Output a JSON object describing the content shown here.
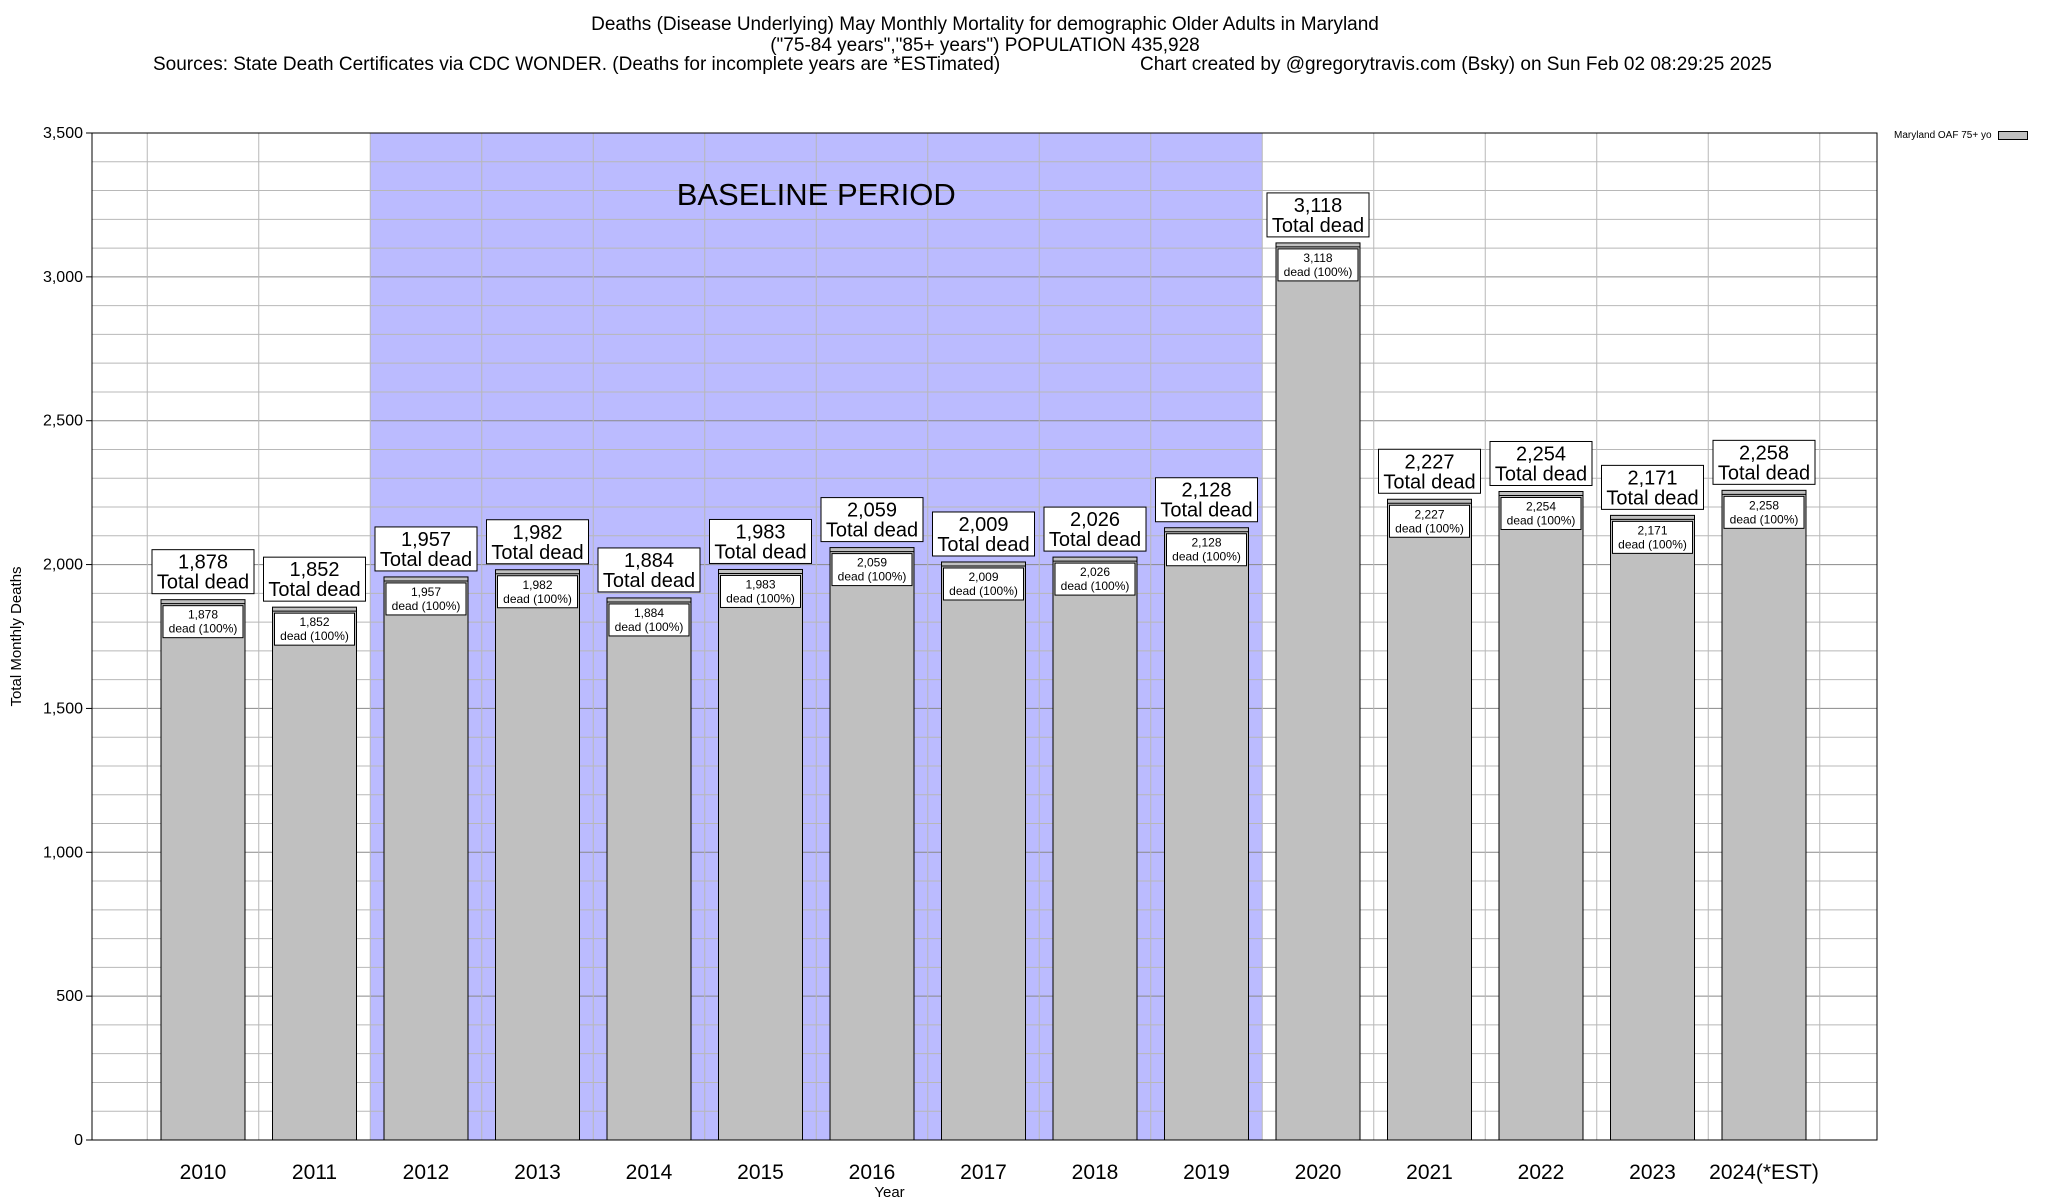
{
  "header": {
    "title_line1": "Deaths (Disease Underlying) May Monthly Mortality for demographic Older Adults in Maryland",
    "title_line2": "(\"75-84 years\",\"85+ years\") POPULATION 435,928",
    "sources": "Sources: State Death Certificates via CDC WONDER. (Deaths for incomplete years are *ESTimated)",
    "credit": "Chart created by @gregorytravis.com (Bsky) on Sun Feb 02 08:29:25 2025"
  },
  "chart_data": {
    "type": "bar",
    "categories": [
      "2010",
      "2011",
      "2012",
      "2013",
      "2014",
      "2015",
      "2016",
      "2017",
      "2018",
      "2019",
      "2020",
      "2021",
      "2022",
      "2023",
      "2024(*EST)"
    ],
    "series": [
      {
        "name": "Maryland OAF 75+ yo",
        "values": [
          1878,
          1852,
          1957,
          1982,
          1884,
          1983,
          2059,
          2009,
          2026,
          2128,
          3118,
          2227,
          2254,
          2171,
          2258
        ],
        "color": "#c0c0c0"
      }
    ],
    "value_labels": [
      "1,878",
      "1,852",
      "1,957",
      "1,982",
      "1,884",
      "1,983",
      "2,059",
      "2,009",
      "2,026",
      "2,128",
      "3,118",
      "2,227",
      "2,254",
      "2,171",
      "2,258"
    ],
    "total_label": "Total dead",
    "inner_label": "dead (100%)",
    "xlabel": "Year",
    "ylabel": "Total Monthly Deaths",
    "ylim": [
      0,
      3500
    ],
    "yticks": [
      0,
      500,
      1000,
      1500,
      2000,
      2500,
      3000,
      3500
    ],
    "ytick_labels": [
      "0",
      "500",
      "1,000",
      "1,500",
      "2,000",
      "2,500",
      "3,000",
      "3,500"
    ],
    "grid": true,
    "legend_position": "top-right",
    "baseline_period": {
      "label": "BASELINE PERIOD",
      "start": "2012",
      "end": "2019",
      "color": "#bbbbff"
    }
  }
}
